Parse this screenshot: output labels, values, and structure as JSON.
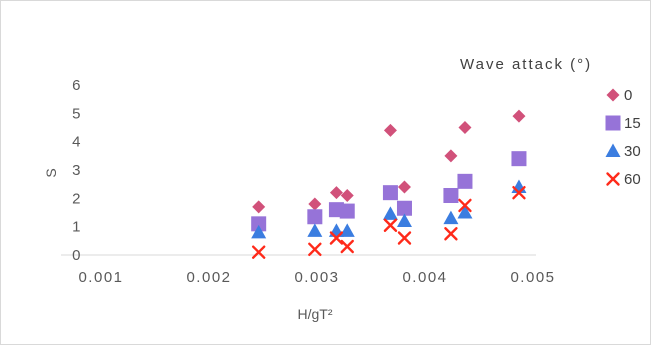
{
  "chart_data": {
    "type": "scatter",
    "title": "",
    "xlabel": "H/gT²",
    "ylabel": "S",
    "xlim": [
      0.001,
      0.005
    ],
    "ylim": [
      0,
      6
    ],
    "xticks": [
      "0.001",
      "0.002",
      "0.003",
      "0.004",
      "0.005"
    ],
    "yticks": [
      "0",
      "1",
      "2",
      "3",
      "4",
      "5",
      "6"
    ],
    "grid": false,
    "legend_title": "Wave attack (°)",
    "legend_position": "right",
    "series": [
      {
        "name": "0",
        "marker": "diamond",
        "color": "#d1517a",
        "points": [
          [
            0.00246,
            1.7
          ],
          [
            0.00298,
            1.8
          ],
          [
            0.00318,
            2.2
          ],
          [
            0.00328,
            2.1
          ],
          [
            0.00368,
            4.4
          ],
          [
            0.00381,
            2.4
          ],
          [
            0.00424,
            3.5
          ],
          [
            0.00437,
            4.5
          ],
          [
            0.00487,
            4.9
          ]
        ]
      },
      {
        "name": "15",
        "marker": "square",
        "color": "#9673d8",
        "points": [
          [
            0.00246,
            1.1
          ],
          [
            0.00298,
            1.35
          ],
          [
            0.00318,
            1.6
          ],
          [
            0.00328,
            1.55
          ],
          [
            0.00368,
            2.2
          ],
          [
            0.00381,
            1.65
          ],
          [
            0.00424,
            2.1
          ],
          [
            0.00437,
            2.6
          ],
          [
            0.00487,
            3.4
          ]
        ]
      },
      {
        "name": "30",
        "marker": "triangle",
        "color": "#3b7de0",
        "points": [
          [
            0.00246,
            0.8
          ],
          [
            0.00298,
            0.85
          ],
          [
            0.00318,
            0.85
          ],
          [
            0.00328,
            0.85
          ],
          [
            0.00368,
            1.45
          ],
          [
            0.00381,
            1.2
          ],
          [
            0.00424,
            1.3
          ],
          [
            0.00437,
            1.5
          ],
          [
            0.00487,
            2.4
          ]
        ]
      },
      {
        "name": "60",
        "marker": "x",
        "color": "#ff2a1a",
        "points": [
          [
            0.00246,
            0.1
          ],
          [
            0.00298,
            0.2
          ],
          [
            0.00318,
            0.6
          ],
          [
            0.00328,
            0.3
          ],
          [
            0.00368,
            1.05
          ],
          [
            0.00381,
            0.6
          ],
          [
            0.00424,
            0.75
          ],
          [
            0.00437,
            1.75
          ],
          [
            0.00487,
            2.2
          ]
        ]
      }
    ]
  }
}
